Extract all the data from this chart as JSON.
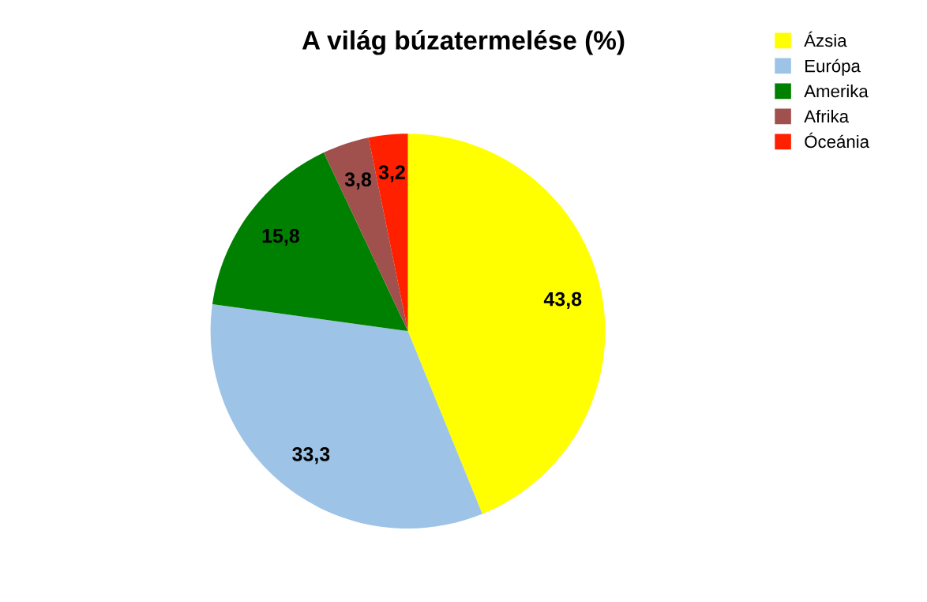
{
  "chart_data": {
    "type": "pie",
    "title": "A világ búzatermelése (%)",
    "categories": [
      "Ázsia",
      "Európa",
      "Amerika",
      "Afrika",
      "Óceánia"
    ],
    "values": [
      43.8,
      33.3,
      15.8,
      3.8,
      3.2
    ],
    "value_labels": [
      "43,8",
      "33,3",
      "15,8",
      "3,8",
      "3,2"
    ],
    "colors": [
      "#ffff00",
      "#9dc3e6",
      "#008000",
      "#a0504d",
      "#ff2000"
    ],
    "legend": "top right"
  }
}
